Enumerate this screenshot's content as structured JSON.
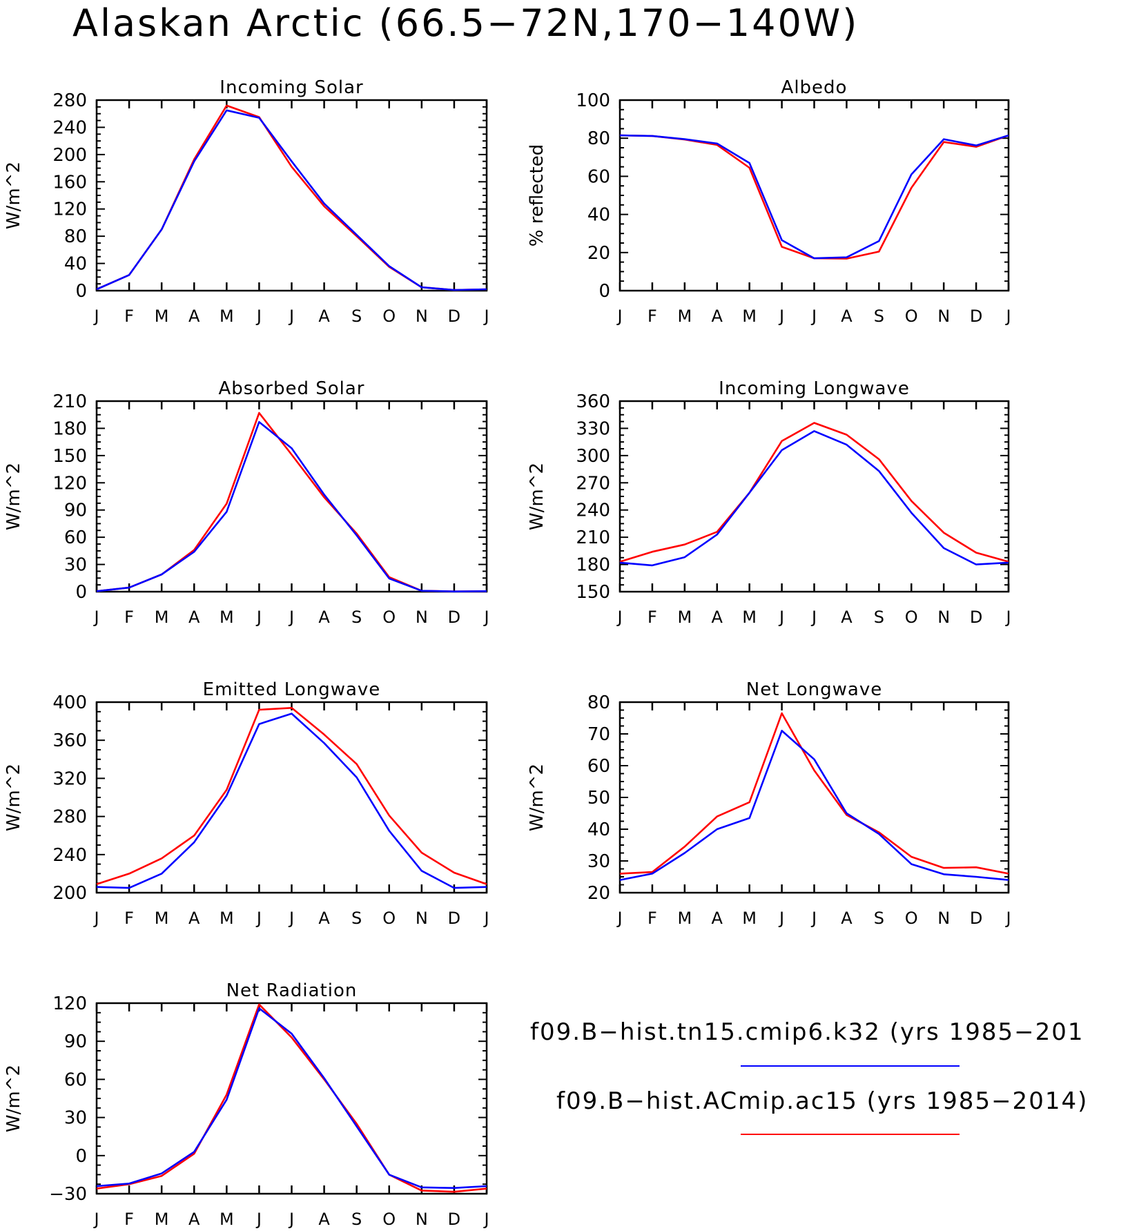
{
  "title": "Alaskan Arctic (66.5−72N,170−140W)",
  "months": [
    "J",
    "F",
    "M",
    "A",
    "M",
    "J",
    "J",
    "A",
    "S",
    "O",
    "N",
    "D",
    "J"
  ],
  "legend": [
    {
      "label": "f09.B−hist.tn15.cmip6.k32 (yrs 1985−201",
      "color": "#0000ff"
    },
    {
      "label": "f09.B−hist.ACmip.ac15 (yrs 1985−2014)",
      "color": "#ff0000"
    }
  ],
  "chart_data": [
    {
      "type": "line",
      "title": "Incoming Solar",
      "ylabel": "W/m^2",
      "ylim": [
        0,
        280
      ],
      "yticks": [
        0,
        40,
        80,
        120,
        160,
        200,
        240,
        280
      ],
      "categories": [
        "J",
        "F",
        "M",
        "A",
        "M",
        "J",
        "J",
        "A",
        "S",
        "O",
        "N",
        "D",
        "J"
      ],
      "series": [
        {
          "name": "f09.B−hist.tn15.cmip6.k32",
          "color": "#0000ff",
          "values": [
            2,
            23,
            90,
            190,
            265,
            254,
            190,
            128,
            82,
            36,
            5,
            1,
            2
          ]
        },
        {
          "name": "f09.B−hist.ACmip.ac15",
          "color": "#ff0000",
          "values": [
            2,
            23,
            90,
            193,
            272,
            255,
            182,
            124,
            80,
            35,
            5,
            1,
            2
          ]
        }
      ]
    },
    {
      "type": "line",
      "title": "Albedo",
      "ylabel": "% reflected",
      "ylim": [
        0,
        100
      ],
      "yticks": [
        0,
        20,
        40,
        60,
        80,
        100
      ],
      "categories": [
        "J",
        "F",
        "M",
        "A",
        "M",
        "J",
        "J",
        "A",
        "S",
        "O",
        "N",
        "D",
        "J"
      ],
      "series": [
        {
          "name": "f09.B−hist.tn15.cmip6.k32",
          "color": "#0000ff",
          "values": [
            81.5,
            81.2,
            79.5,
            77.2,
            67,
            26.5,
            17,
            17.5,
            26,
            61,
            79.5,
            76.2,
            81.5
          ]
        },
        {
          "name": "f09.B−hist.ACmip.ac15",
          "color": "#ff0000",
          "values": [
            81.5,
            81.2,
            79.3,
            76.5,
            64.5,
            23,
            17,
            16.8,
            20.5,
            54,
            78,
            75.5,
            81.5
          ]
        }
      ]
    },
    {
      "type": "line",
      "title": "Absorbed Solar",
      "ylabel": "W/m^2",
      "ylim": [
        0,
        210
      ],
      "yticks": [
        0,
        30,
        60,
        90,
        120,
        150,
        180,
        210
      ],
      "categories": [
        "J",
        "F",
        "M",
        "A",
        "M",
        "J",
        "J",
        "A",
        "S",
        "O",
        "N",
        "D",
        "J"
      ],
      "series": [
        {
          "name": "f09.B−hist.tn15.cmip6.k32",
          "color": "#0000ff",
          "values": [
            0.5,
            4.5,
            19,
            44,
            88,
            187,
            158,
            107,
            62,
            14.5,
            1,
            0.2,
            0.5
          ]
        },
        {
          "name": "f09.B−hist.ACmip.ac15",
          "color": "#ff0000",
          "values": [
            0.5,
            4.5,
            19,
            46,
            97,
            197,
            151,
            104,
            64,
            16,
            1,
            0.2,
            0.5
          ]
        }
      ]
    },
    {
      "type": "line",
      "title": "Incoming Longwave",
      "ylabel": "W/m^2",
      "ylim": [
        150,
        360
      ],
      "yticks": [
        150,
        180,
        210,
        240,
        270,
        300,
        330,
        360
      ],
      "categories": [
        "J",
        "F",
        "M",
        "A",
        "M",
        "J",
        "J",
        "A",
        "S",
        "O",
        "N",
        "D",
        "J"
      ],
      "series": [
        {
          "name": "f09.B−hist.tn15.cmip6.k32",
          "color": "#0000ff",
          "values": [
            182,
            179,
            188,
            213,
            259,
            306,
            327,
            312,
            283,
            237,
            198,
            180,
            182
          ]
        },
        {
          "name": "f09.B−hist.ACmip.ac15",
          "color": "#ff0000",
          "values": [
            183,
            194,
            202,
            216,
            259,
            316,
            336,
            323,
            296,
            250,
            215,
            193,
            183
          ]
        }
      ]
    },
    {
      "type": "line",
      "title": "Emitted Longwave",
      "ylabel": "W/m^2",
      "ylim": [
        200,
        400
      ],
      "yticks": [
        200,
        240,
        280,
        320,
        360,
        400
      ],
      "categories": [
        "J",
        "F",
        "M",
        "A",
        "M",
        "J",
        "J",
        "A",
        "S",
        "O",
        "N",
        "D",
        "J"
      ],
      "series": [
        {
          "name": "f09.B−hist.tn15.cmip6.k32",
          "color": "#0000ff",
          "values": [
            206,
            205,
            220,
            253,
            302,
            377,
            388,
            357,
            321,
            265,
            223,
            205,
            206
          ]
        },
        {
          "name": "f09.B−hist.ACmip.ac15",
          "color": "#ff0000",
          "values": [
            209,
            220,
            236,
            260,
            308,
            392,
            394,
            366,
            335,
            281,
            242,
            221,
            209
          ]
        }
      ]
    },
    {
      "type": "line",
      "title": "Net Longwave",
      "ylabel": "W/m^2",
      "ylim": [
        20,
        80
      ],
      "yticks": [
        20,
        30,
        40,
        50,
        60,
        70,
        80
      ],
      "categories": [
        "J",
        "F",
        "M",
        "A",
        "M",
        "J",
        "J",
        "A",
        "S",
        "O",
        "N",
        "D",
        "J"
      ],
      "series": [
        {
          "name": "f09.B−hist.tn15.cmip6.k32",
          "color": "#0000ff",
          "values": [
            24,
            26,
            32.5,
            40,
            43.5,
            71,
            62,
            45,
            38.5,
            29,
            25.8,
            25,
            24
          ]
        },
        {
          "name": "f09.B−hist.ACmip.ac15",
          "color": "#ff0000",
          "values": [
            26,
            26.5,
            34.5,
            44,
            48.5,
            76.5,
            58.5,
            44.5,
            39,
            31.3,
            27.8,
            28,
            26
          ]
        }
      ]
    },
    {
      "type": "line",
      "title": "Net Radiation",
      "ylabel": "W/m^2",
      "ylim": [
        -30,
        120
      ],
      "yticks": [
        -30,
        0,
        30,
        60,
        90,
        120
      ],
      "categories": [
        "J",
        "F",
        "M",
        "A",
        "M",
        "J",
        "J",
        "A",
        "S",
        "O",
        "N",
        "D",
        "J"
      ],
      "series": [
        {
          "name": "f09.B−hist.tn15.cmip6.k32",
          "color": "#0000ff",
          "values": [
            -24,
            -22,
            -14,
            3,
            44,
            116,
            96,
            61,
            23,
            -15,
            -25,
            -25.5,
            -24
          ]
        },
        {
          "name": "f09.B−hist.ACmip.ac15",
          "color": "#ff0000",
          "values": [
            -26,
            -22.5,
            -16,
            1.5,
            48,
            119,
            93,
            60,
            25,
            -15,
            -27.5,
            -28.5,
            -26
          ]
        }
      ]
    }
  ]
}
